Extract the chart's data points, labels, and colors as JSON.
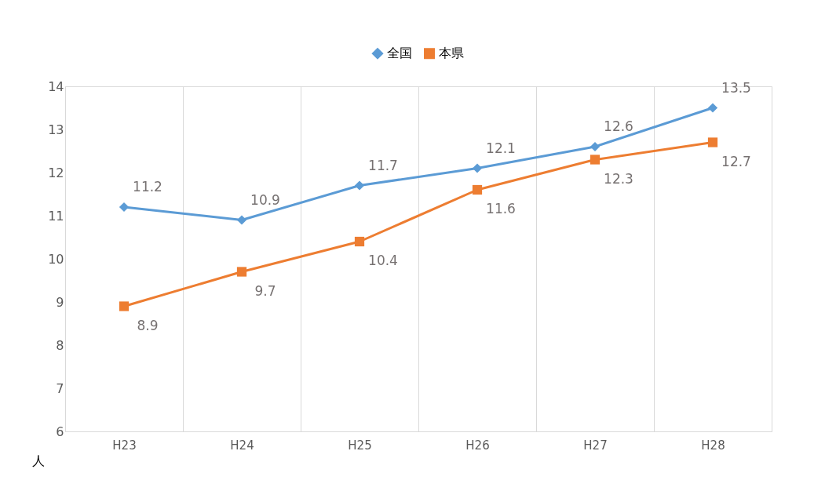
{
  "chart_data": {
    "type": "line",
    "ylabel": "人",
    "categories": [
      "H23",
      "H24",
      "H25",
      "H26",
      "H27",
      "H28"
    ],
    "series": [
      {
        "name": "全国",
        "color": "#5b9bd5",
        "marker": "diamond",
        "values": [
          11.2,
          10.9,
          11.7,
          12.1,
          12.6,
          13.5
        ]
      },
      {
        "name": "本県",
        "color": "#ed7d31",
        "marker": "square",
        "values": [
          8.9,
          9.7,
          10.4,
          11.6,
          12.3,
          12.7
        ]
      }
    ],
    "ylim": [
      6,
      14
    ],
    "yticks": [
      6,
      7,
      8,
      9,
      10,
      11,
      12,
      13,
      14
    ],
    "grid": "x",
    "legend": "top",
    "data_labels": true,
    "line_style": "solid"
  }
}
